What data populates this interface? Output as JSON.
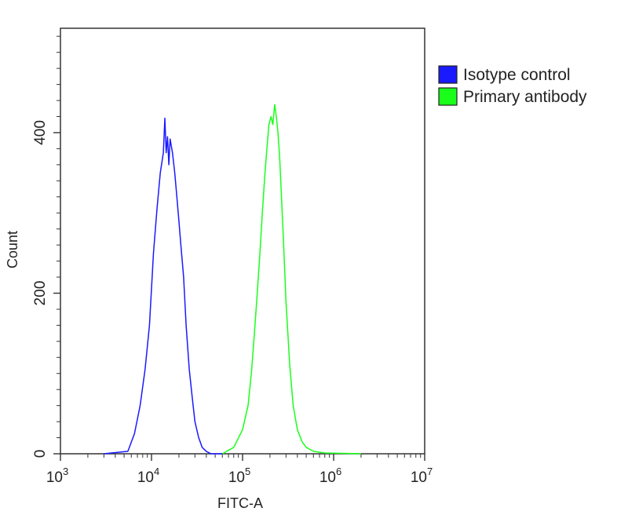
{
  "chart_data": {
    "type": "line",
    "title": "",
    "xlabel": "FITC-A",
    "ylabel": "Count",
    "x_scale": "log",
    "xlim": [
      1000,
      10000000
    ],
    "ylim": [
      0,
      530
    ],
    "grid": false,
    "legend_position": "top-right, outside plot",
    "x_ticks": [
      {
        "value": 1000,
        "base": "10",
        "exp": "3"
      },
      {
        "value": 10000,
        "base": "10",
        "exp": "4"
      },
      {
        "value": 100000,
        "base": "10",
        "exp": "5"
      },
      {
        "value": 1000000,
        "base": "10",
        "exp": "6"
      },
      {
        "value": 10000000,
        "base": "10",
        "exp": "7"
      }
    ],
    "y_ticks": [
      0,
      200,
      400
    ],
    "series": [
      {
        "name": "Isotype control",
        "color": "#1a1aff",
        "x": [
          3000,
          5500,
          6500,
          7500,
          8500,
          9500,
          10500,
          11500,
          12500,
          13500,
          14000,
          14500,
          15000,
          15500,
          16000,
          17000,
          18000,
          19000,
          20000,
          21000,
          22500,
          24000,
          26000,
          28000,
          30000,
          33000,
          36000,
          40000,
          45000,
          60000
        ],
        "y": [
          0,
          3,
          25,
          60,
          105,
          160,
          250,
          305,
          350,
          375,
          418,
          375,
          395,
          360,
          392,
          375,
          350,
          320,
          290,
          260,
          220,
          160,
          105,
          70,
          40,
          20,
          8,
          3,
          0,
          0
        ]
      },
      {
        "name": "Primary antibody",
        "color": "#1aff1a",
        "x": [
          60000,
          80000,
          100000,
          115000,
          125000,
          135000,
          145000,
          155000,
          165000,
          175000,
          185000,
          195000,
          205000,
          215000,
          225000,
          235000,
          245000,
          255000,
          265000,
          280000,
          300000,
          330000,
          360000,
          400000,
          450000,
          500000,
          600000,
          800000,
          2000000
        ],
        "y": [
          0,
          8,
          30,
          60,
          100,
          150,
          200,
          250,
          300,
          345,
          380,
          410,
          420,
          410,
          435,
          420,
          400,
          370,
          330,
          270,
          190,
          110,
          60,
          30,
          15,
          8,
          3,
          1,
          0
        ]
      }
    ]
  }
}
